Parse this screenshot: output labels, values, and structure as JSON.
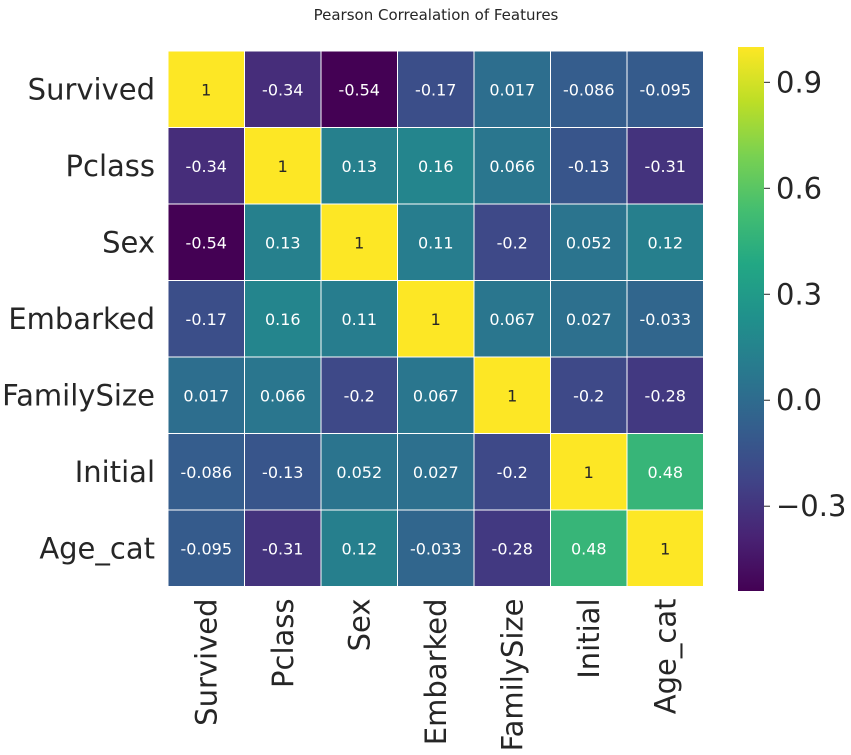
{
  "chart_data": {
    "type": "heatmap",
    "title": "Pearson Correalation of Features",
    "rows": [
      "Survived",
      "Pclass",
      "Sex",
      "Embarked",
      "FamilySize",
      "Initial",
      "Age_cat"
    ],
    "cols": [
      "Survived",
      "Pclass",
      "Sex",
      "Embarked",
      "FamilySize",
      "Initial",
      "Age_cat"
    ],
    "values": [
      [
        1,
        -0.34,
        -0.54,
        -0.17,
        0.017,
        -0.086,
        -0.095
      ],
      [
        -0.34,
        1,
        0.13,
        0.16,
        0.066,
        -0.13,
        -0.31
      ],
      [
        -0.54,
        0.13,
        1,
        0.11,
        -0.2,
        0.052,
        0.12
      ],
      [
        -0.17,
        0.16,
        0.11,
        1,
        0.067,
        0.027,
        -0.033
      ],
      [
        0.017,
        0.066,
        -0.2,
        0.067,
        1,
        -0.2,
        -0.28
      ],
      [
        -0.086,
        -0.13,
        0.052,
        0.027,
        -0.2,
        1,
        0.48
      ],
      [
        -0.095,
        -0.31,
        0.12,
        -0.033,
        -0.28,
        0.48,
        1
      ]
    ],
    "labels": [
      [
        "1",
        "-0.34",
        "-0.54",
        "-0.17",
        "0.017",
        "-0.086",
        "-0.095"
      ],
      [
        "-0.34",
        "1",
        "0.13",
        "0.16",
        "0.066",
        "-0.13",
        "-0.31"
      ],
      [
        "-0.54",
        "0.13",
        "1",
        "0.11",
        "-0.2",
        "0.052",
        "0.12"
      ],
      [
        "-0.17",
        "0.16",
        "0.11",
        "1",
        "0.067",
        "0.027",
        "-0.033"
      ],
      [
        "0.017",
        "0.066",
        "-0.2",
        "0.067",
        "1",
        "-0.2",
        "-0.28"
      ],
      [
        "-0.086",
        "-0.13",
        "0.052",
        "0.027",
        "-0.2",
        "1",
        "0.48"
      ],
      [
        "-0.095",
        "-0.31",
        "0.12",
        "-0.033",
        "-0.28",
        "0.48",
        "1"
      ]
    ],
    "colormap": "viridis",
    "color_range": [
      -0.54,
      1
    ],
    "colorbar": {
      "ticks": [
        0.9,
        0.6,
        0.3,
        0.0,
        -0.3
      ],
      "tick_labels": [
        "0.9",
        "0.6",
        "0.3",
        "0.0",
        "−0.3"
      ]
    },
    "grid": "white cell borders",
    "colors": {
      "cell_border": "#ffffff",
      "light_text": "#ffffff",
      "dark_text": "#262626"
    }
  }
}
